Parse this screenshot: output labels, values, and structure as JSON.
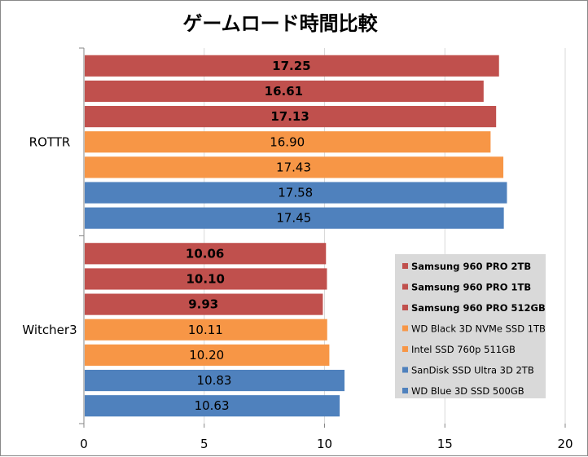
{
  "chart_data": {
    "type": "bar",
    "orientation": "horizontal",
    "title": "ゲームロード時間比較",
    "categories": [
      "ROTTR",
      "Witcher3"
    ],
    "series": [
      {
        "name": "Samsung 960 PRO 2TB",
        "color": "#C0504D",
        "bold": true,
        "values": [
          17.25,
          10.06
        ]
      },
      {
        "name": "Samsung 960 PRO 1TB",
        "color": "#C0504D",
        "bold": true,
        "values": [
          16.61,
          10.1
        ]
      },
      {
        "name": "Samsung 960 PRO 512GB",
        "color": "#C0504D",
        "bold": true,
        "values": [
          17.13,
          9.93
        ]
      },
      {
        "name": "WD Black 3D NVMe SSD 1TB",
        "color": "#F79646",
        "bold": false,
        "values": [
          16.9,
          10.11
        ]
      },
      {
        "name": "Intel SSD 760p 511GB",
        "color": "#F79646",
        "bold": false,
        "values": [
          17.43,
          10.2
        ]
      },
      {
        "name": "SanDisk SSD Ultra 3D 2TB",
        "color": "#4F81BD",
        "bold": false,
        "values": [
          17.58,
          10.83
        ]
      },
      {
        "name": "WD Blue 3D SSD 500GB",
        "color": "#4F81BD",
        "bold": false,
        "values": [
          17.45,
          10.63
        ]
      }
    ],
    "xlim": [
      0,
      20
    ],
    "xticks": [
      0,
      5,
      10,
      15,
      20
    ],
    "xlabel": "",
    "ylabel": "",
    "grid": "vertical",
    "grid_color": "#D9D9D9",
    "legend_position": "right-inside",
    "legend_background": "#D9D9D9"
  }
}
